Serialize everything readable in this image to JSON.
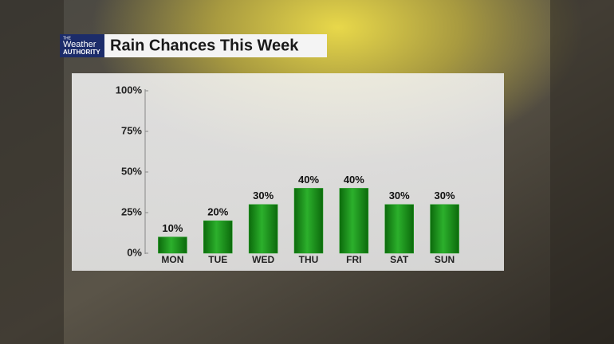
{
  "branding": {
    "small": "THE",
    "name": "Weather",
    "sub": "AUTHORITY"
  },
  "chart_data": {
    "type": "bar",
    "title": "Rain Chances This Week",
    "categories": [
      "MON",
      "TUE",
      "WED",
      "THU",
      "FRI",
      "SAT",
      "SUN"
    ],
    "values": [
      10,
      20,
      30,
      40,
      40,
      30,
      30
    ],
    "value_labels": [
      "10%",
      "20%",
      "30%",
      "40%",
      "40%",
      "30%",
      "30%"
    ],
    "color": "#22a022",
    "ylim": [
      0,
      100
    ],
    "yticks": [
      {
        "value": 0,
        "label": "0%"
      },
      {
        "value": 25,
        "label": "25%"
      },
      {
        "value": 50,
        "label": "50%"
      },
      {
        "value": 75,
        "label": "75%"
      },
      {
        "value": 100,
        "label": "100%"
      }
    ]
  }
}
